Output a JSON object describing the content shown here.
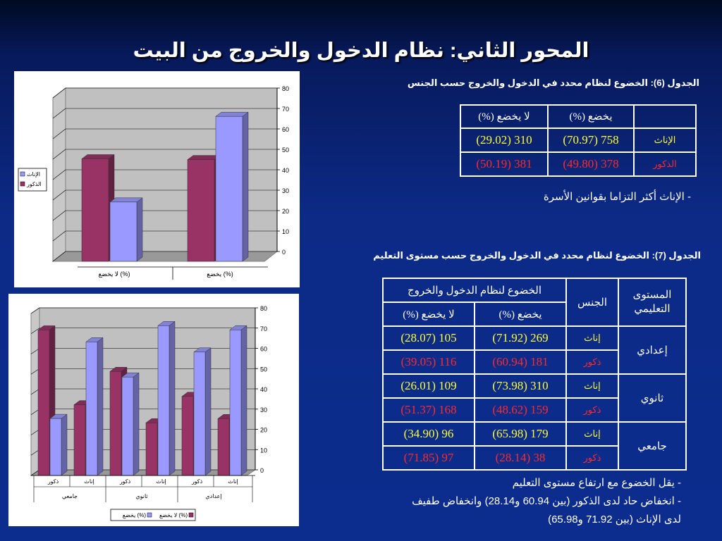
{
  "slide": {
    "title": "المحور الثاني: نظام الدخول والخروج من البيت"
  },
  "table6": {
    "caption": "الجدول (6): الخضوع لنظام محدد في الدخول والخروج حسب الجنس",
    "headers": [
      "",
      "يخضع (%)",
      "لا يخضع (%)"
    ],
    "rows": [
      {
        "label": "الإناث",
        "subject": "758 (70.97)",
        "not_subject": "310 (29.02)"
      },
      {
        "label": "الذكور",
        "subject": "378 (49.80)",
        "not_subject": "381 (50.19)"
      }
    ],
    "note": "- الإناث أكثر التزاما بقوانين الأسرة"
  },
  "table7": {
    "caption": "الجدول (7): الخضوع لنظام محدد في الدخول والخروج حسب مستوى التعليم",
    "col_level": "المستوى التعليمي",
    "col_gender": "الجنس",
    "col_group": "الخضوع لنظام الدخول والخروج",
    "col_subject": "يخضع (%)",
    "col_not_subject": "لا يخضع (%)",
    "levels": [
      {
        "name": "إعدادي",
        "rows": [
          {
            "gender": "إناث",
            "subject": "269 (71.92)",
            "not_subject": "105 (28.07)"
          },
          {
            "gender": "ذكور",
            "subject": "181 (60.94)",
            "not_subject": "116 (39.05)"
          }
        ]
      },
      {
        "name": "ثانوي",
        "rows": [
          {
            "gender": "إناث",
            "subject": "310 (73.98)",
            "not_subject": "109 (26.01)"
          },
          {
            "gender": "ذكور",
            "subject": "159 (48.62)",
            "not_subject": "168 (51.37)"
          }
        ]
      },
      {
        "name": "جامعي",
        "rows": [
          {
            "gender": "إناث",
            "subject": "179 (65.98)",
            "not_subject": "96 (34.90)"
          },
          {
            "gender": "ذكور",
            "subject": "38 (28.14)",
            "not_subject": "97 (71.85)"
          }
        ]
      }
    ],
    "notes": [
      "- يقل الخضوع مع ارتفاع مستوى التعليم",
      "- انخفاض حاد لدى الذكور (بين 60.94 و28.14) وانخفاض طفيف",
      "لدى الإناث (بين 71.92 و65.98)"
    ]
  },
  "chart_data": [
    {
      "type": "bar",
      "categories": [
        "لا يخضع (%)",
        "يخضع (%)"
      ],
      "series": [
        {
          "name": "الإناث",
          "values": [
            29.02,
            70.97
          ]
        },
        {
          "name": "الذكور",
          "values": [
            50.19,
            49.8
          ]
        }
      ],
      "ylim": [
        0,
        80
      ],
      "yticks": [
        0,
        10,
        20,
        30,
        40,
        50,
        60,
        70,
        80
      ],
      "legend": "left",
      "colors": {
        "الإناث": "#9999ff",
        "الذكور": "#993366"
      }
    },
    {
      "type": "bar",
      "groups": [
        {
          "name": "جامعي",
          "categories": [
            "ذكور",
            "إناث"
          ]
        },
        {
          "name": "ثانوي",
          "categories": [
            "ذكور",
            "إناث"
          ]
        },
        {
          "name": "إعدادي",
          "categories": [
            "ذكور",
            "إناث"
          ]
        }
      ],
      "series": [
        {
          "name": "لا يخضع (%)",
          "values": [
            71.85,
            34.9,
            51.37,
            26.01,
            39.05,
            28.07
          ]
        },
        {
          "name": "يخضع (%)",
          "values": [
            28.14,
            65.98,
            48.62,
            73.98,
            60.94,
            71.92
          ]
        }
      ],
      "ylim": [
        0,
        80
      ],
      "yticks": [
        0,
        10,
        20,
        30,
        40,
        50,
        60,
        70,
        80
      ],
      "legend": "bottom",
      "colors": {
        "لا يخضع (%)": "#993366",
        "يخضع (%)": "#9999ff"
      }
    }
  ]
}
